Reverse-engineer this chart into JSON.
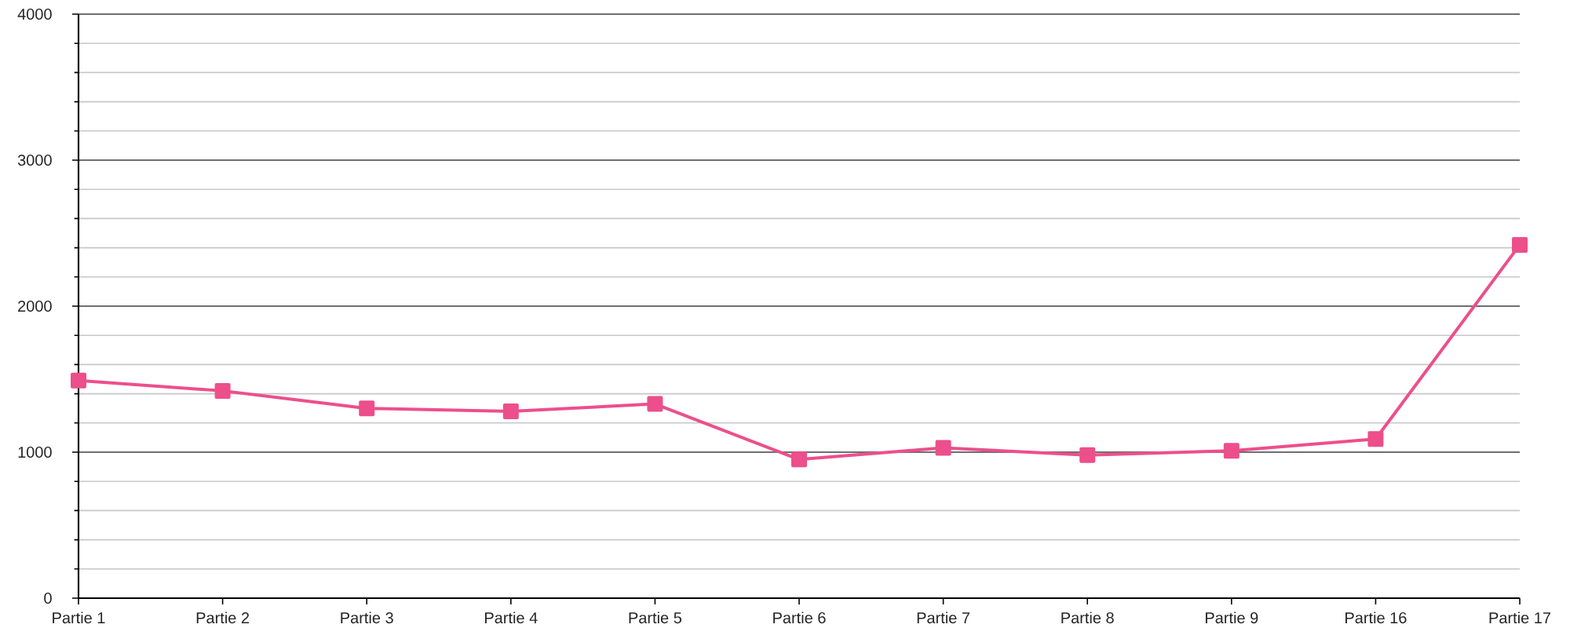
{
  "chart_data": {
    "type": "line",
    "categories": [
      "Partie 1",
      "Partie 2",
      "Partie 3",
      "Partie 4",
      "Partie 5",
      "Partie 6",
      "Partie 7",
      "Partie 8",
      "Partie 9",
      "Partie 16",
      "Partie 17"
    ],
    "values": [
      1490,
      1420,
      1300,
      1280,
      1330,
      950,
      1030,
      980,
      1010,
      1090,
      2420
    ],
    "color": "#ec4f8b",
    "marker": "square",
    "line_style": "solid",
    "ylim": [
      0,
      4000
    ],
    "yticks": [
      0,
      {
        "value": 200,
        "label": null
      },
      {
        "value": 400,
        "label": null
      },
      {
        "value": 600,
        "label": null
      },
      {
        "value": 800,
        "label": null
      },
      1000,
      {
        "value": 1200,
        "label": null
      },
      {
        "value": 1400,
        "label": null
      },
      {
        "value": 1600,
        "label": null
      },
      {
        "value": 1800,
        "label": null
      },
      2000,
      {
        "value": 2200,
        "label": null
      },
      {
        "value": 2400,
        "label": null
      },
      {
        "value": 2600,
        "label": null
      },
      {
        "value": 2800,
        "label": null
      },
      3000,
      {
        "value": 3200,
        "label": null
      },
      {
        "value": 3400,
        "label": null
      },
      {
        "value": 3600,
        "label": null
      },
      {
        "value": 3800,
        "label": null
      },
      4000
    ],
    "grid": "y"
  }
}
